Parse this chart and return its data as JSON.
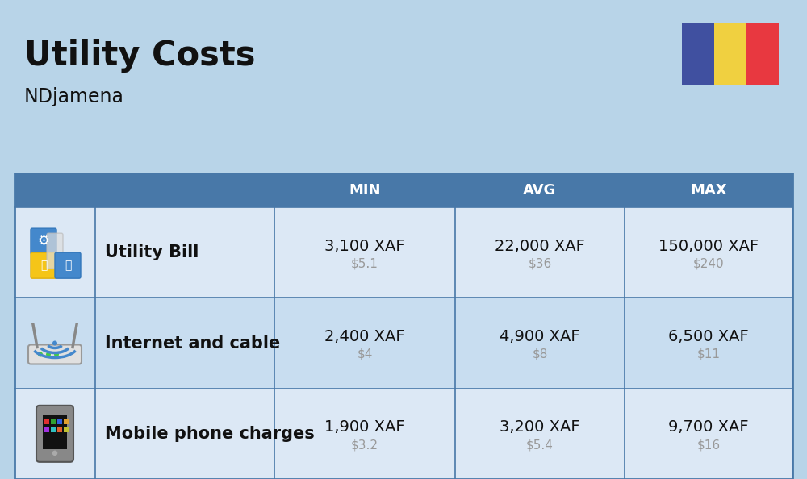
{
  "title": "Utility Costs",
  "subtitle": "NDjamena",
  "background_color": "#b8d4e8",
  "header_bg_color": "#4878a8",
  "header_text_color": "#ffffff",
  "row_bg_color_odd": "#dce8f5",
  "row_bg_color_even": "#c8ddf0",
  "table_border_color": "#4878a8",
  "rows": [
    {
      "label": "Utility Bill",
      "icon_label": "utility",
      "min_xaf": "3,100 XAF",
      "min_usd": "$5.1",
      "avg_xaf": "22,000 XAF",
      "avg_usd": "$36",
      "max_xaf": "150,000 XAF",
      "max_usd": "$240"
    },
    {
      "label": "Internet and cable",
      "icon_label": "internet",
      "min_xaf": "2,400 XAF",
      "min_usd": "$4",
      "avg_xaf": "4,900 XAF",
      "avg_usd": "$8",
      "max_xaf": "6,500 XAF",
      "max_usd": "$11"
    },
    {
      "label": "Mobile phone charges",
      "icon_label": "mobile",
      "min_xaf": "1,900 XAF",
      "min_usd": "$3.2",
      "avg_xaf": "3,200 XAF",
      "avg_usd": "$5.4",
      "max_xaf": "9,700 XAF",
      "max_usd": "$16"
    }
  ],
  "flag_colors": [
    "#4050a0",
    "#f0d040",
    "#e83840"
  ],
  "title_fontsize": 30,
  "subtitle_fontsize": 17,
  "header_fontsize": 13,
  "cell_xaf_fontsize": 14,
  "label_fontsize": 15,
  "usd_fontsize": 11,
  "usd_color": "#999999"
}
